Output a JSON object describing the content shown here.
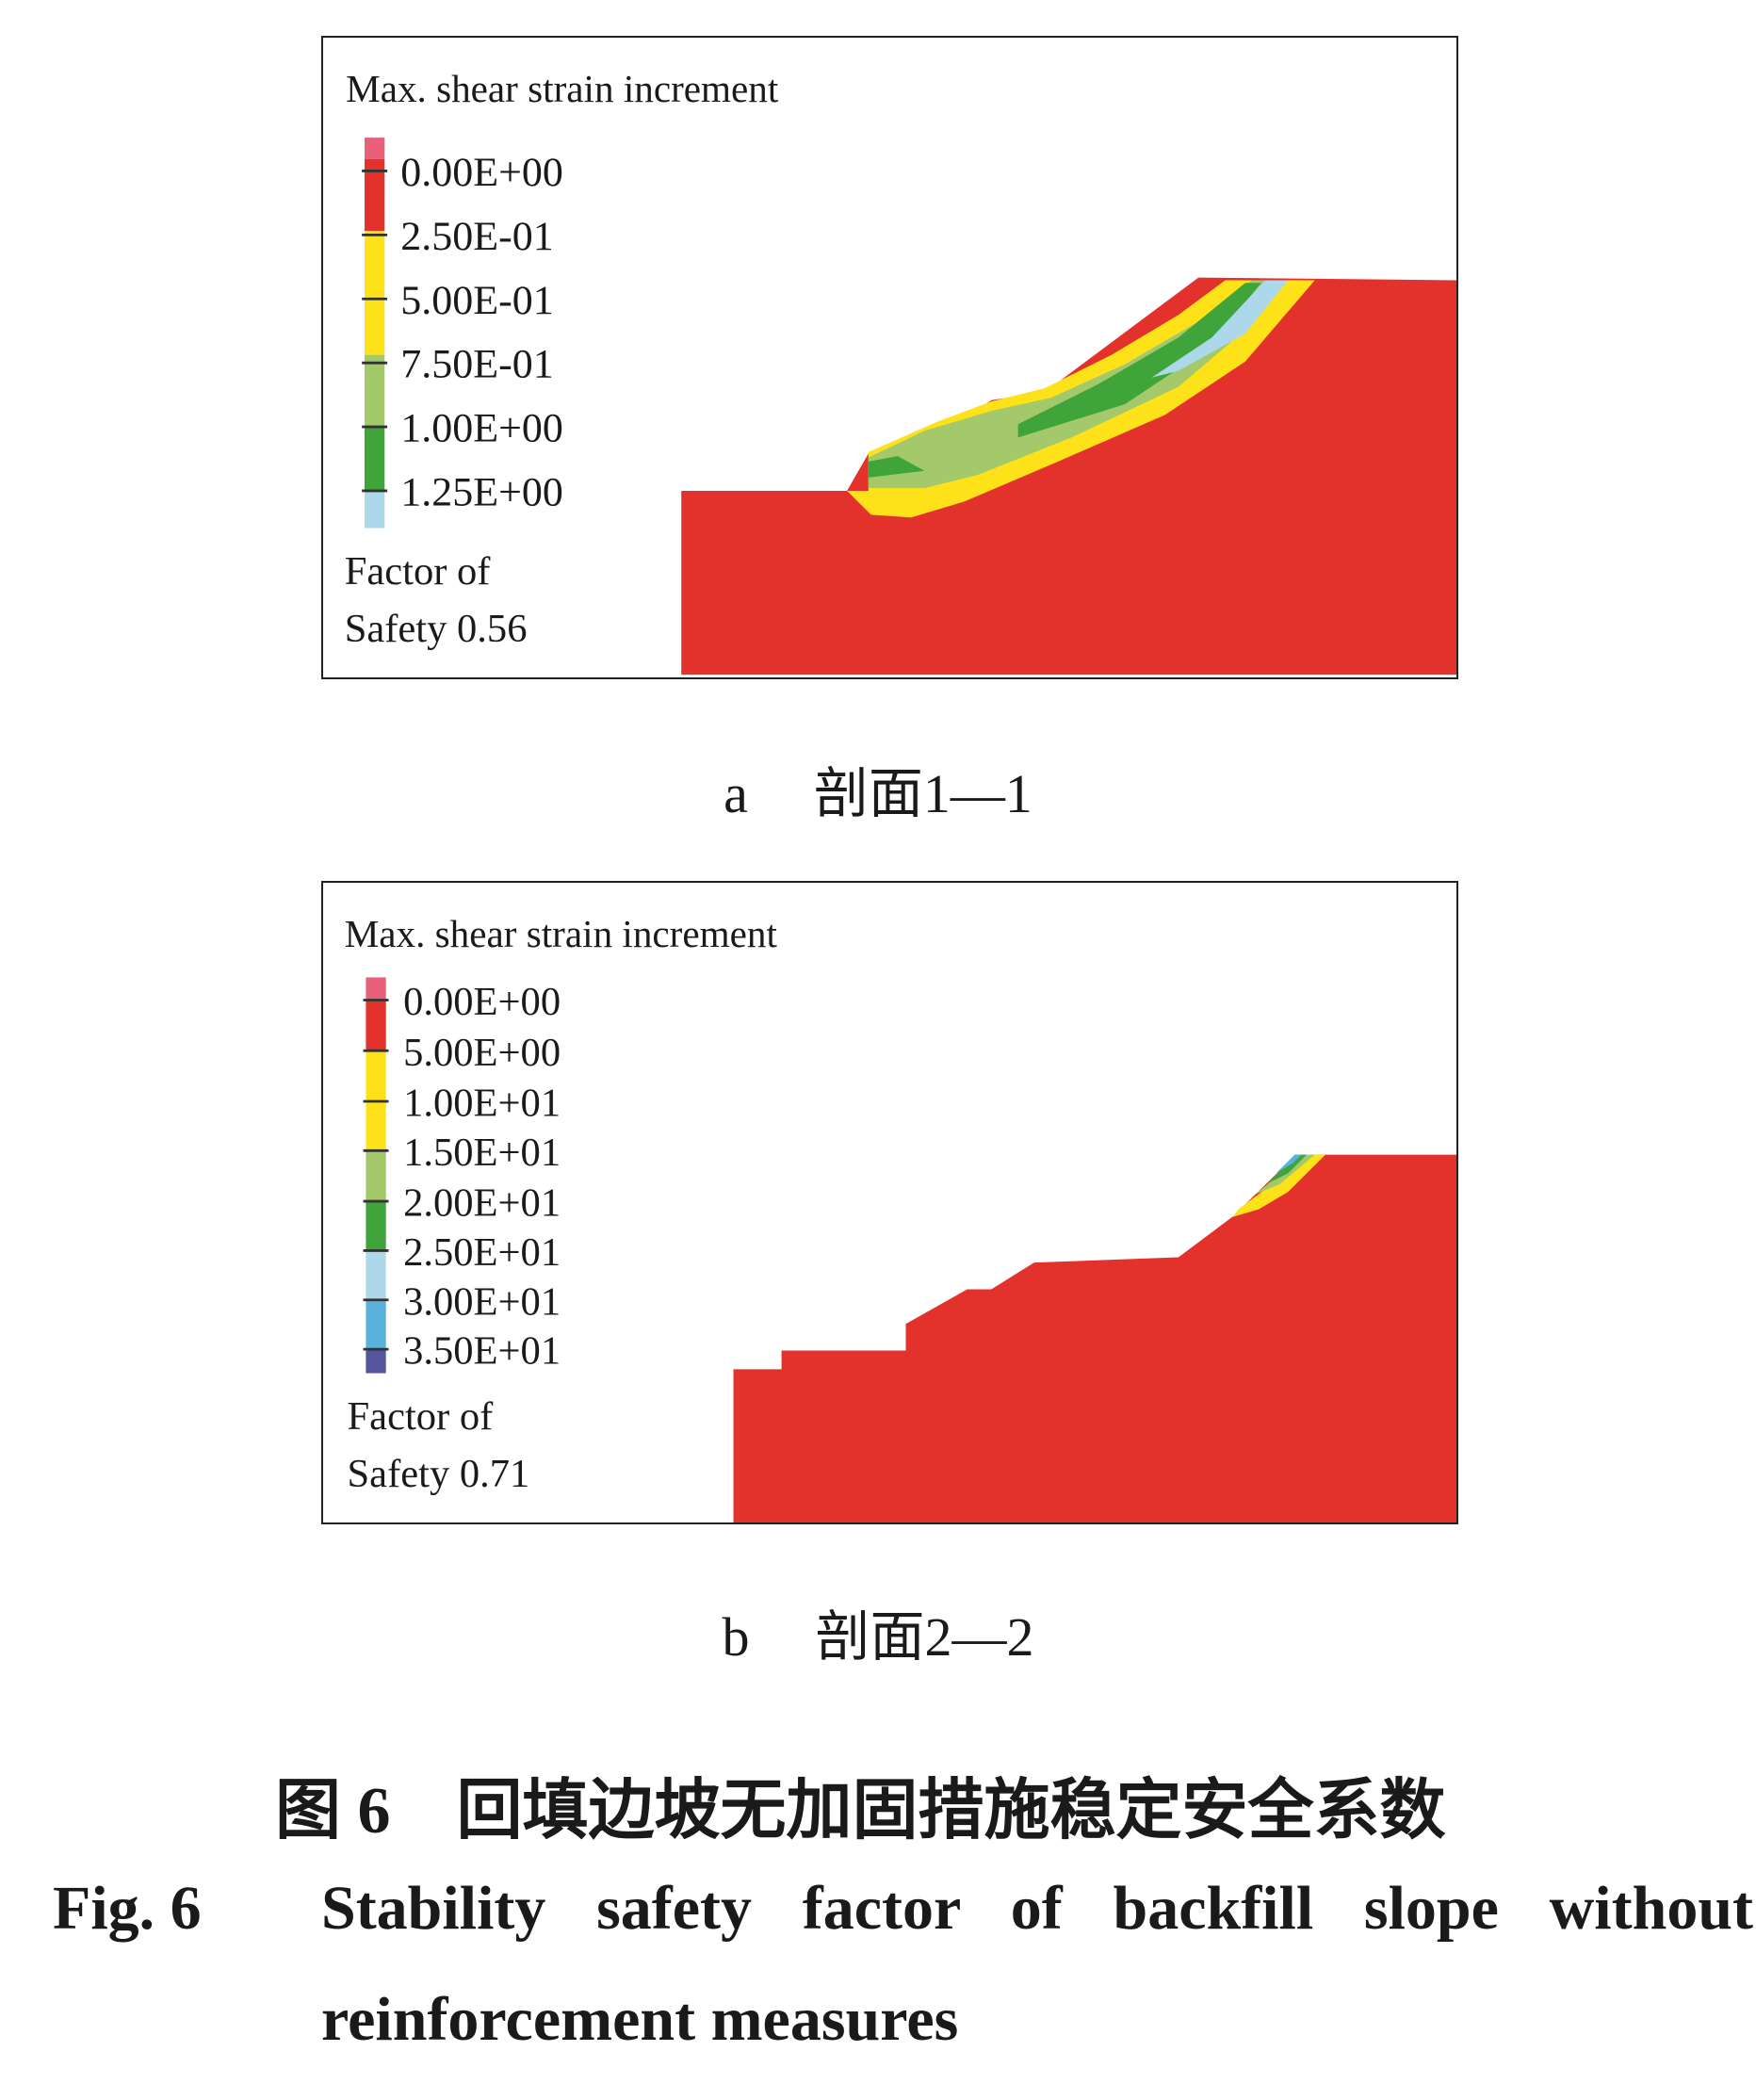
{
  "panels": [
    {
      "legend_title": "Max. shear strain increment",
      "legend_labels": [
        "0.00E+00",
        "2.50E-01",
        "5.00E-01",
        "7.50E-01",
        "1.00E+00",
        "1.25E+00"
      ],
      "factor_line1": "Factor of",
      "factor_line2": "Safety 0.56",
      "caption_letter": "a",
      "caption_text": "剖面1—1"
    },
    {
      "legend_title": "Max. shear strain increment",
      "legend_labels": [
        "0.00E+00",
        "5.00E+00",
        "1.00E+01",
        "1.50E+01",
        "2.00E+01",
        "2.50E+01",
        "3.00E+01",
        "3.50E+01"
      ],
      "factor_line1": "Factor of",
      "factor_line2": "Safety 0.71",
      "caption_letter": "b",
      "caption_text": "剖面2—2"
    }
  ],
  "figure": {
    "cn_number": "图 6",
    "cn_title": "回填边坡无加固措施稳定安全系数",
    "en_number": "Fig. 6",
    "en_title_line1": "Stability safety factor of backfill slope without",
    "en_title_line2": "reinforcement measures"
  },
  "colors": {
    "red": "#e3322c",
    "pink": "#e8607a",
    "yellow": "#fde21a",
    "light_green": "#a3c96a",
    "green": "#3fa43a",
    "light_blue": "#acd8ea",
    "blue": "#5ab2dc",
    "dark_blue": "#55569c"
  }
}
